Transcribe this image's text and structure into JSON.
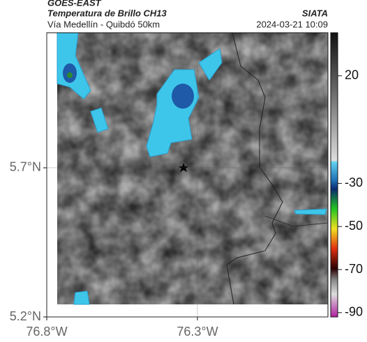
{
  "header": {
    "source": "GOES-EAST",
    "title": "Temperatura de Brillo CH13",
    "subtitle": "Vía Medellín - Quibdó 50km",
    "credit": "SIATA",
    "timestamp": "2024-03-21 10:09"
  },
  "map": {
    "xlim": [
      -76.8,
      -75.867
    ],
    "ylim": [
      5.2,
      6.153
    ],
    "xticks": [
      {
        "value": -76.8,
        "label": "76.8°W"
      },
      {
        "value": -76.3,
        "label": "76.3°W"
      }
    ],
    "yticks": [
      {
        "value": 5.2,
        "label": "5.2°N"
      },
      {
        "value": 5.7,
        "label": "5.7°N"
      }
    ]
  },
  "colorbar": {
    "clim": [
      -92,
      40
    ],
    "ticks": [
      20,
      -30,
      -50,
      -70,
      -90
    ]
  }
}
